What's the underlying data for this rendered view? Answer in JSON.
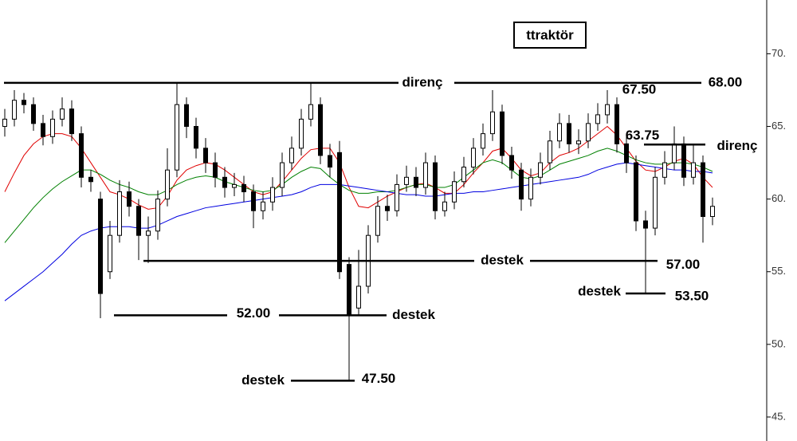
{
  "chart_data": {
    "type": "candlestick",
    "title": "ttraktör",
    "ylim": [
      43.35,
      73.7
    ],
    "yticks": [
      {
        "value": 70,
        "label": "70."
      },
      {
        "value": 65,
        "label": "65."
      },
      {
        "value": 60,
        "label": "60."
      },
      {
        "value": 55,
        "label": "55."
      },
      {
        "value": 50,
        "label": "50."
      },
      {
        "value": 45,
        "label": "45."
      }
    ],
    "open": [
      65,
      65.5,
      66.8,
      66.5,
      65.2,
      64.3,
      65.5,
      66.2,
      64.5,
      61.5,
      60,
      55,
      57.5,
      60.5,
      59.5,
      57.5,
      57.8,
      60,
      62,
      66.5,
      65,
      63.5,
      62.5,
      61.5,
      60.8,
      61,
      60.5,
      59.2,
      59.8,
      60.8,
      62.5,
      63.5,
      65.5,
      66.5,
      63,
      63.2,
      55.5,
      52.5,
      54,
      57.5,
      59.5,
      59.2,
      61,
      61.5,
      60.8,
      62.5,
      59.2,
      59.8,
      61.2,
      62.2,
      63.5,
      64.5,
      66,
      63,
      62,
      60,
      61.5,
      62.5,
      64,
      65.2,
      63.8,
      64,
      65.2,
      65.8,
      66.5,
      63.8,
      62.5,
      58.5,
      58,
      61.5,
      62.5,
      63.8,
      61.5,
      62.5,
      58.8
    ],
    "high": [
      66.2,
      67.5,
      67.3,
      67,
      65.8,
      66.1,
      67,
      66.8,
      65,
      62,
      60.5,
      58.5,
      61.3,
      61.2,
      60,
      58.8,
      60.6,
      63.5,
      68,
      67,
      65.6,
      64.2,
      63.2,
      62.2,
      61.8,
      61.6,
      61,
      60.5,
      61.5,
      63.2,
      64.3,
      66.2,
      68,
      67,
      63.8,
      64,
      56,
      56.5,
      58.2,
      60.2,
      60.3,
      61.7,
      62.3,
      62.2,
      63.2,
      63,
      60.5,
      61.9,
      62.9,
      64.2,
      65.2,
      67.5,
      66.5,
      63.6,
      62.5,
      62.1,
      63.2,
      64.7,
      65.9,
      65.8,
      64.8,
      65.9,
      66.6,
      67.5,
      67,
      64.4,
      63,
      59.2,
      62.2,
      63.3,
      65,
      64.3,
      63.8,
      63,
      60.1
    ],
    "low": [
      64.3,
      65,
      65.9,
      64.7,
      63.7,
      63.8,
      65,
      64,
      60.8,
      60.5,
      51.8,
      54.5,
      57,
      58.8,
      55.8,
      55.6,
      57.2,
      59.5,
      61.5,
      64.2,
      62.8,
      61.8,
      60.8,
      60.1,
      60.2,
      59.8,
      58,
      58.6,
      59.2,
      60.2,
      62,
      63,
      65,
      62.4,
      61.5,
      54.5,
      47.5,
      52,
      53.5,
      57,
      58.5,
      58.8,
      60.5,
      60.2,
      60.3,
      58.6,
      58.8,
      59.3,
      60.8,
      61.7,
      63,
      64,
      62.4,
      61.4,
      59.2,
      59.5,
      61,
      62,
      63.5,
      63.2,
      63.1,
      63.5,
      64.7,
      65.2,
      63.2,
      61.8,
      57.8,
      53.5,
      57.5,
      61,
      62,
      60.9,
      61,
      57,
      58.2
    ],
    "close": [
      65.5,
      66.8,
      66.5,
      65.2,
      64.3,
      65.5,
      66.2,
      64.5,
      61.5,
      61.2,
      53.5,
      57.5,
      60.5,
      59.5,
      57.5,
      57.8,
      60,
      62,
      66.5,
      65,
      63.5,
      62.5,
      61.5,
      60.8,
      61,
      60.5,
      59.2,
      59.8,
      60.8,
      62.5,
      63.5,
      65.5,
      66.5,
      63,
      62.2,
      55,
      52,
      54,
      57.5,
      59.5,
      59.2,
      61,
      61.5,
      60.8,
      62.5,
      59.2,
      59.8,
      61.2,
      62.2,
      63.5,
      64.5,
      66,
      63,
      62,
      60,
      61.5,
      62.5,
      64,
      65.2,
      63.8,
      64,
      65.2,
      65.8,
      66.5,
      63.8,
      62.5,
      58.5,
      58,
      61.5,
      62.5,
      63.8,
      61.5,
      62.5,
      58.8,
      59.5
    ],
    "averages": [
      {
        "color": "#e00000",
        "values": [
          60.5,
          61.8,
          63,
          63.8,
          64.3,
          64.5,
          64.5,
          64.3,
          63.5,
          62.5,
          61.5,
          60.5,
          60.3,
          60,
          59.6,
          59.3,
          59.4,
          60.2,
          61.3,
          62,
          62.3,
          62.5,
          62.4,
          62,
          61.5,
          61,
          60.5,
          60.3,
          60.5,
          61.2,
          62,
          62.8,
          63.4,
          63.5,
          63.5,
          62.5,
          60.8,
          59.5,
          59.4,
          59.8,
          60.2,
          60.5,
          60.8,
          61,
          61.1,
          60.8,
          60.4,
          60.4,
          61,
          61.8,
          62.5,
          63.3,
          63.5,
          62.8,
          62,
          61.6,
          61.8,
          62.5,
          63,
          63.2,
          63.5,
          64,
          64.5,
          65,
          64.4,
          63.5,
          62.6,
          62,
          61.9,
          62.2,
          62.6,
          62.8,
          62.4,
          61.5,
          60.8
        ]
      },
      {
        "color": "#008000",
        "values": [
          57,
          57.8,
          58.6,
          59.4,
          60.1,
          60.7,
          61.2,
          61.6,
          62,
          62,
          61.7,
          61.3,
          61,
          60.8,
          60.5,
          60.3,
          60.3,
          60.6,
          61,
          61.3,
          61.5,
          61.6,
          61.5,
          61.2,
          61,
          60.8,
          60.6,
          60.5,
          60.6,
          61,
          61.5,
          61.9,
          62.2,
          62.1,
          61.5,
          61,
          60.6,
          60.4,
          60.4,
          60.5,
          60.5,
          60.6,
          60.8,
          61,
          61,
          60.8,
          60.8,
          61,
          61.5,
          62,
          62.5,
          62.7,
          62.5,
          62,
          61.5,
          61.4,
          61.6,
          62,
          62.4,
          62.6,
          62.8,
          63,
          63.3,
          63.5,
          63.3,
          63,
          62.7,
          62.5,
          62.4,
          62.4,
          62.5,
          62.5,
          62.4,
          62.2,
          61.9
        ]
      },
      {
        "color": "#0000e0",
        "values": [
          53,
          53.5,
          54,
          54.5,
          55,
          55.6,
          56.2,
          56.9,
          57.5,
          57.8,
          58,
          58.1,
          58.1,
          58.1,
          58,
          58,
          58.2,
          58.5,
          58.8,
          59,
          59.2,
          59.4,
          59.5,
          59.6,
          59.7,
          59.8,
          59.9,
          60,
          60.1,
          60.2,
          60.3,
          60.5,
          60.8,
          61,
          61,
          61,
          60.9,
          60.8,
          60.7,
          60.6,
          60.5,
          60.4,
          60.3,
          60.3,
          60.2,
          60.2,
          60.3,
          60.4,
          60.4,
          60.5,
          60.5,
          60.6,
          60.7,
          60.8,
          60.9,
          61,
          61.1,
          61.2,
          61.3,
          61.4,
          61.5,
          61.7,
          62,
          62.2,
          62.4,
          62.5,
          62.4,
          62.3,
          62.2,
          62.1,
          62,
          62,
          61.9,
          61.9,
          61.8
        ]
      }
    ],
    "annotations": [
      {
        "text": "direnç",
        "value_label": "68.00",
        "value": 68
      },
      {
        "value_label": "67.50",
        "value": 67.5
      },
      {
        "text": "direnç",
        "value_label": "63.75",
        "value": 63.75
      },
      {
        "value_label": "57.00",
        "value": 57
      },
      {
        "text": "destek",
        "value": 55.75
      },
      {
        "text": "destek",
        "value_label": "52.00",
        "value": 52
      },
      {
        "text": "destek",
        "value_label": "47.50",
        "value": 47.5
      },
      {
        "text": "destek",
        "value_label": "53.50",
        "value": 53.5
      }
    ]
  }
}
